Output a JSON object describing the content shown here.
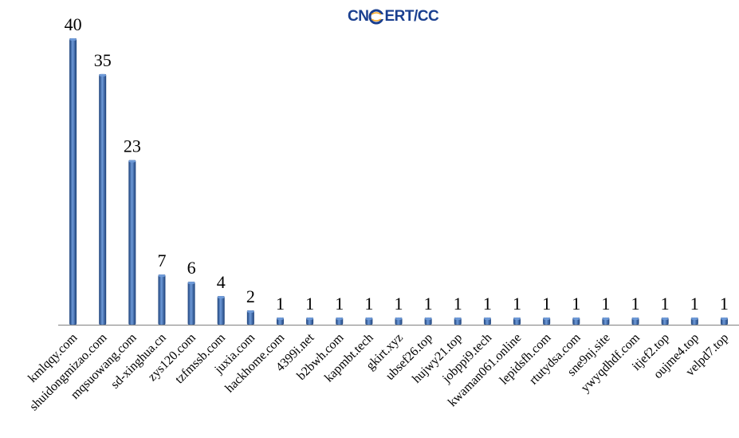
{
  "logo": {
    "text": "CNCERT/CC",
    "prefix": "CN",
    "suffix": "ERT/CC",
    "color": "#1a3f8f",
    "accent": "#f5a623",
    "icon": "globe-c-icon"
  },
  "chart_data": {
    "type": "bar",
    "categories": [
      "kmlqqy.com",
      "shuidongmizao.com",
      "mqsuowang.com",
      "sd-xinghua.cn",
      "zys120.com",
      "tzfmssb.com",
      "juxia.com",
      "hackhome.com",
      "4399i.net",
      "b2bwh.com",
      "kapmbt.tech",
      "gkirt.xyz",
      "ubsef26.top",
      "hujwy21.top",
      "jobppi9.tech",
      "kwaman061.online",
      "lepidsfh.com",
      "rtutydsa.com",
      "sne9nj.site",
      "ywyqdhdf.com",
      "itjef2.top",
      "oujme4.top",
      "velpd7.top"
    ],
    "values": [
      40,
      35,
      23,
      7,
      6,
      4,
      2,
      1,
      1,
      1,
      1,
      1,
      1,
      1,
      1,
      1,
      1,
      1,
      1,
      1,
      1,
      1,
      1
    ],
    "value_labels": [
      "40",
      "35",
      "23",
      "7",
      "6",
      "4",
      "2",
      "1",
      "1",
      "1",
      "1",
      "1",
      "1",
      "1",
      "1",
      "1",
      "1",
      "1",
      "1",
      "1",
      "1",
      "1",
      "1"
    ],
    "ylim": [
      0,
      40
    ],
    "grid": false,
    "legend": "none",
    "bar_color": "#2e5ea8",
    "bar_highlight": "#6e9ad8",
    "bar_shadow": "#1b3f78"
  }
}
